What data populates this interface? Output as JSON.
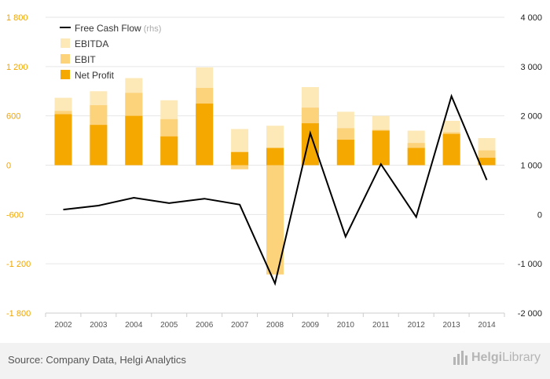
{
  "chart_data": {
    "type": "bar",
    "categories": [
      "2002",
      "2003",
      "2004",
      "2005",
      "2006",
      "2007",
      "2008",
      "2009",
      "2010",
      "2011",
      "2012",
      "2013",
      "2014"
    ],
    "series": [
      {
        "name": "EBITDA",
        "type": "bar",
        "axis": "left",
        "color": "#fde9b8",
        "values": [
          820,
          900,
          1060,
          790,
          1190,
          440,
          480,
          950,
          650,
          600,
          420,
          540,
          330
        ]
      },
      {
        "name": "EBIT",
        "type": "bar",
        "axis": "left",
        "color": "#fcd27b",
        "values": [
          660,
          730,
          880,
          560,
          940,
          -50,
          -1330,
          700,
          450,
          430,
          270,
          400,
          180
        ]
      },
      {
        "name": "Net Profit",
        "type": "bar",
        "axis": "left",
        "color": "#f5a800",
        "values": [
          620,
          490,
          600,
          350,
          750,
          160,
          210,
          510,
          310,
          420,
          210,
          380,
          90
        ]
      },
      {
        "name": "Free Cash Flow",
        "type": "line",
        "axis": "right",
        "color": "#000000",
        "values": [
          100,
          180,
          340,
          230,
          320,
          200,
          -1400,
          1650,
          -450,
          1020,
          -50,
          2400,
          700
        ]
      }
    ],
    "ylim_left": [
      -1800,
      1800
    ],
    "ylim_right": [
      -2000,
      4000
    ],
    "yticks_left": [
      1800,
      1200,
      600,
      0,
      -600,
      -1200,
      -1800
    ],
    "yticks_left_labels": [
      "1 800",
      "1 200",
      "600",
      "0",
      "-600",
      "-1 200",
      "-1 800"
    ],
    "yticks_right": [
      4000,
      3000,
      2000,
      1000,
      0,
      -1000,
      -2000
    ],
    "yticks_right_labels": [
      "4 000",
      "3 000",
      "2 000",
      "1 000",
      "0",
      "-1 000",
      "-2 000"
    ],
    "grid": true,
    "legend_position": "top-left",
    "legend": [
      {
        "label": "Free Cash Flow",
        "suffix": "(rhs)",
        "marker": "line",
        "color": "#000000"
      },
      {
        "label": "EBITDA",
        "marker": "square",
        "color": "#fde9b8"
      },
      {
        "label": "EBIT",
        "marker": "square",
        "color": "#fcd27b"
      },
      {
        "label": "Net Profit",
        "marker": "square",
        "color": "#f5a800"
      }
    ]
  },
  "footer": {
    "source": "Source: Company Data, Helgi Analytics",
    "brand_part1": "Helgi",
    "brand_part2": "Library"
  }
}
